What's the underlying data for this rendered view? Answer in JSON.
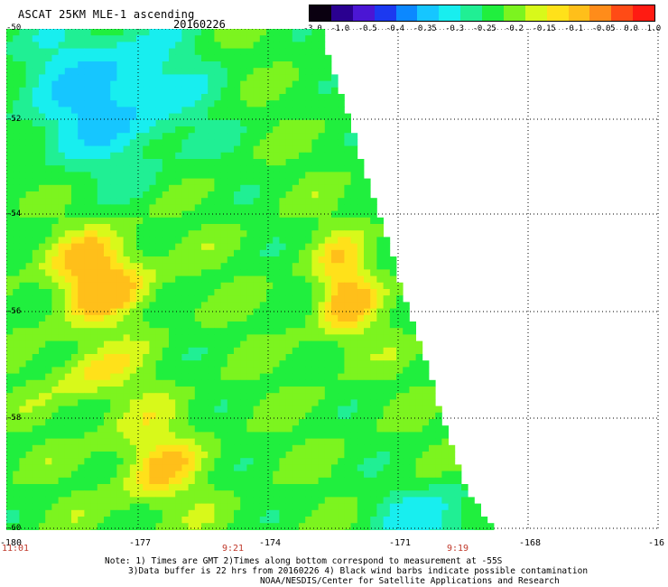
{
  "title": "ASCAT 25KM MLE-1 ascending",
  "date": "20160226",
  "colorbar": {
    "labels": [
      "-3.0",
      "-1.0",
      "-0.5",
      "-0.4",
      "-0.35",
      "-0.3",
      "-0.25",
      "-0.2",
      "-0.15",
      "-0.1",
      "-0.05",
      "0.0",
      "1.0"
    ],
    "colors": [
      "#0a0010",
      "#2a0090",
      "#4b16d4",
      "#1c39f0",
      "#0c88ff",
      "#16c6ff",
      "#18eeef",
      "#20ef94",
      "#20ef3e",
      "#7cf41f",
      "#d8f91a",
      "#ffe11a",
      "#ffbf1a",
      "#ff8c1a",
      "#ff4b16",
      "#ff1b12"
    ]
  },
  "lat_labels": [
    "-50",
    "-52",
    "-54",
    "-56",
    "-58",
    "-60"
  ],
  "lon_labels": [
    "-180",
    "-177",
    "-174",
    "-171",
    "-168",
    "-16"
  ],
  "time_labels": [
    "11:01",
    "9:21",
    "9:19"
  ],
  "notes": [
    "Note: 1) Times are GMT 2)Times along bottom correspond to measurement at -55S",
    "3)Data buffer is 22 hrs from 20160226 4) Black wind barbs indicate possible contamination",
    "NOAA/NESDIS/Center for Satellite Applications and Research"
  ]
}
